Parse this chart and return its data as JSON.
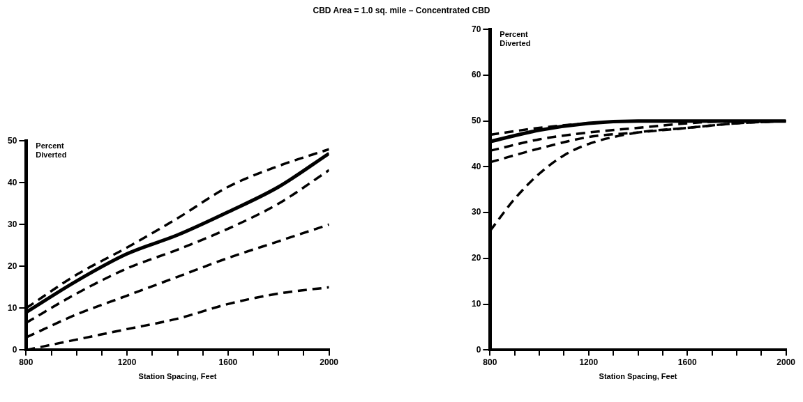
{
  "chart_data": [
    {
      "type": "line",
      "title": "CBD Area = 1.0 sq. mile – Concentrated CBD",
      "xlabel": "Station Spacing, Feet",
      "ylabel": "Percent Diverted",
      "x": [
        800,
        1000,
        1200,
        1400,
        1600,
        1800,
        2000
      ],
      "series": [
        {
          "color": "#000000",
          "line_style": "solid",
          "values": [
            9,
            16.5,
            23,
            27.5,
            33,
            39,
            47
          ]
        },
        {
          "color": "#000000",
          "line_style": "dashed",
          "values": [
            10,
            18,
            24.5,
            31.5,
            39,
            44,
            48
          ]
        },
        {
          "color": "#000000",
          "line_style": "dashed",
          "values": [
            6.5,
            13.5,
            19.5,
            24,
            29,
            35,
            43
          ]
        },
        {
          "color": "#000000",
          "line_style": "dashed",
          "values": [
            3,
            8.5,
            13,
            17.5,
            22,
            26,
            30
          ]
        },
        {
          "color": "#000000",
          "line_style": "dashed",
          "values": [
            0,
            2.5,
            5,
            7.5,
            11,
            13.5,
            15
          ]
        }
      ],
      "xlim": [
        800,
        2000
      ],
      "xticks": [
        800,
        {
          "value": 900,
          "label": null
        },
        {
          "value": 1000,
          "label": null
        },
        {
          "value": 1100,
          "label": null
        },
        1200,
        {
          "value": 1300,
          "label": null
        },
        {
          "value": 1400,
          "label": null
        },
        {
          "value": 1500,
          "label": null
        },
        1600,
        {
          "value": 1700,
          "label": null
        },
        {
          "value": 1800,
          "label": null
        },
        {
          "value": 1900,
          "label": null
        },
        2000
      ],
      "ylim": [
        0,
        50
      ],
      "yticks": [
        0,
        10,
        20,
        30,
        40,
        50
      ],
      "grid": false,
      "legend": false
    },
    {
      "type": "line",
      "xlabel": "Station Spacing, Feet",
      "ylabel": "Percent Diverted",
      "x": [
        800,
        1000,
        1200,
        1400,
        1600,
        1800,
        2000
      ],
      "series": [
        {
          "color": "#000000",
          "line_style": "solid",
          "values": [
            45.5,
            48,
            49.5,
            50,
            50,
            50,
            50
          ]
        },
        {
          "color": "#000000",
          "line_style": "dashed",
          "values": [
            47,
            48.5,
            49.5,
            50,
            50,
            50,
            50
          ]
        },
        {
          "color": "#000000",
          "line_style": "dashed",
          "values": [
            43.5,
            46,
            47.5,
            48.5,
            49.5,
            50,
            50
          ]
        },
        {
          "color": "#000000",
          "line_style": "dashed",
          "values": [
            41,
            44,
            46.5,
            47.5,
            48.5,
            49.5,
            50
          ]
        },
        {
          "color": "#000000",
          "line_style": "dashed",
          "x": [
            800,
            900,
            1000,
            1100,
            1200,
            1400,
            1600,
            1800,
            2000
          ],
          "values": [
            26,
            33,
            38.5,
            42.5,
            45,
            47.5,
            48.5,
            49.5,
            50
          ]
        }
      ],
      "xlim": [
        800,
        2000
      ],
      "xticks": [
        800,
        {
          "value": 900,
          "label": null
        },
        {
          "value": 1000,
          "label": null
        },
        {
          "value": 1100,
          "label": null
        },
        1200,
        {
          "value": 1300,
          "label": null
        },
        {
          "value": 1400,
          "label": null
        },
        {
          "value": 1500,
          "label": null
        },
        1600,
        {
          "value": 1700,
          "label": null
        },
        {
          "value": 1800,
          "label": null
        },
        {
          "value": 1900,
          "label": null
        },
        2000
      ],
      "ylim": [
        0,
        70
      ],
      "yticks": [
        0,
        10,
        20,
        30,
        40,
        50,
        60,
        70
      ],
      "grid": false,
      "legend": false
    }
  ]
}
